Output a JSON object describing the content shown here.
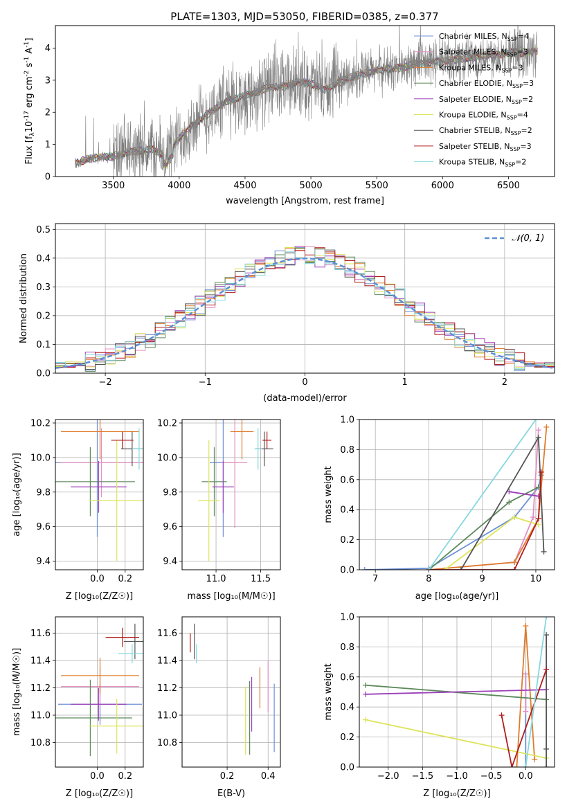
{
  "title": "PLATE=1303, MJD=53050, FIBERID=0385, z=0.377",
  "series_colors": [
    "#6b8fd6",
    "#e48fc4",
    "#e07b2a",
    "#5b8a5b",
    "#9b3fb8",
    "#dde45a",
    "#555555",
    "#b01c1c",
    "#86d8dd"
  ],
  "chart_data": [
    {
      "type": "line",
      "id": "spectrum",
      "xlabel": "wavelength [Angstrom, rest frame]",
      "ylabel": "Flux [f",
      "ylabel_sub": "λ",
      "ylabel_rest": "10",
      "ylabel_exp1": "-17",
      "ylabel_mid": " erg cm",
      "ylabel_exp2": "-2",
      "ylabel_mid2": " s",
      "ylabel_exp3": "-1",
      "ylabel_mid3": " A",
      "ylabel_exp4": "-1",
      "ylabel_end": "]",
      "xlim": [
        3060,
        6850
      ],
      "ylim": [
        0,
        4.7
      ],
      "xticks": [
        "3500",
        "4000",
        "4500",
        "5000",
        "5500",
        "6000",
        "6500"
      ],
      "yticks": [
        "0",
        "1",
        "2",
        "3",
        "4"
      ],
      "legend_position": "upper right",
      "data_continuum": {
        "x": [
          3210,
          3300,
          3400,
          3500,
          3600,
          3700,
          3800,
          3900,
          4000,
          4100,
          4200,
          4300,
          4400,
          4500,
          4600,
          4700,
          4800,
          4900,
          5000,
          5100,
          5200,
          5300,
          5400,
          5500,
          5600,
          5700,
          5800,
          5900,
          6000,
          6100,
          6200,
          6300,
          6400,
          6500,
          6600,
          6700
        ],
        "y": [
          0.4,
          0.55,
          0.6,
          0.62,
          0.75,
          0.8,
          0.85,
          0.6,
          1.2,
          1.6,
          1.9,
          2.2,
          2.4,
          2.5,
          2.65,
          2.8,
          2.8,
          2.95,
          2.9,
          2.7,
          2.9,
          3.1,
          3.2,
          3.3,
          3.35,
          3.4,
          3.5,
          3.55,
          3.6,
          3.65,
          3.7,
          3.75,
          3.8,
          3.85,
          3.85,
          3.9
        ]
      },
      "legend": [
        {
          "name": "Chabrier MILES, N",
          "sub": "SSP",
          "val": "=4"
        },
        {
          "name": "Salpeter MILES, N",
          "sub": "SSP",
          "val": "=3"
        },
        {
          "name": "Kroupa MILES, N",
          "sub": "SSP",
          "val": "=3"
        },
        {
          "name": "Chabrier ELODIE, N",
          "sub": "SSP",
          "val": "=3"
        },
        {
          "name": "Salpeter ELODIE, N",
          "sub": "SSP",
          "val": "=2"
        },
        {
          "name": "Kroupa ELODIE, N",
          "sub": "SSP",
          "val": "=4"
        },
        {
          "name": "Chabrier STELIB, N",
          "sub": "SSP",
          "val": "=2"
        },
        {
          "name": "Salpeter STELIB, N",
          "sub": "SSP",
          "val": "=3"
        },
        {
          "name": "Kroupa STELIB, N",
          "sub": "SSP",
          "val": "=2"
        }
      ]
    },
    {
      "type": "histogram",
      "id": "residuals",
      "xlabel": "(data-model)/error",
      "ylabel": "Normed distribution",
      "xlim": [
        -2.5,
        2.5
      ],
      "ylim": [
        0,
        0.52
      ],
      "xticks": [
        "−2",
        "−1",
        "0",
        "1",
        "2"
      ],
      "xtick_values": [
        -2,
        -1,
        0,
        1,
        2
      ],
      "yticks": [
        "0.0",
        "0.1",
        "0.2",
        "0.3",
        "0.4",
        "0.5"
      ],
      "legend_label": "𝒩(0, 1)",
      "grid": true,
      "bin_width": 0.1,
      "bins_start": -2.5
    },
    {
      "type": "errorbar",
      "id": "age_vs_Z",
      "xlabel": "Z [log₁₀(Z/Z☉)]",
      "ylabel": "age  [log₁₀(age/yr)]",
      "xlim": [
        -0.3,
        0.33
      ],
      "ylim": [
        9.35,
        10.22
      ],
      "xticks": [
        "0.0",
        "0.2"
      ],
      "xtick_values": [
        0.0,
        0.2
      ],
      "yticks": [
        "9.4",
        "9.6",
        "9.8",
        "10.0",
        "10.2"
      ],
      "ytick_values": [
        9.4,
        9.6,
        9.8,
        10.0,
        10.2
      ],
      "points": [
        {
          "x": 0.0,
          "xerr": 0.35,
          "y": 9.97,
          "yerr": 0.43
        },
        {
          "x": 0.03,
          "xerr": 0.3,
          "y": 9.97,
          "yerr": 0.2
        },
        {
          "x": 0.02,
          "xerr": 0.28,
          "y": 10.15,
          "yerr": 0.16
        },
        {
          "x": -0.05,
          "xerr": 0.32,
          "y": 9.86,
          "yerr": 0.2
        },
        {
          "x": 0.01,
          "xerr": 0.2,
          "y": 9.83,
          "yerr": 0.15
        },
        {
          "x": 0.14,
          "xerr": 0.2,
          "y": 9.75,
          "yerr": 0.35
        },
        {
          "x": 0.25,
          "xerr": 0.08,
          "y": 10.05,
          "yerr": 0.1
        },
        {
          "x": 0.18,
          "xerr": 0.08,
          "y": 10.1,
          "yerr": 0.05
        },
        {
          "x": 0.3,
          "xerr": 0.05,
          "y": 10.05,
          "yerr": 0.12
        }
      ]
    },
    {
      "type": "errorbar",
      "id": "age_vs_mass",
      "xlabel": "mass [log₁₀(M/M☉)]",
      "ylabel": "",
      "xlim": [
        10.62,
        11.72
      ],
      "ylim": [
        9.35,
        10.22
      ],
      "xticks": [
        "11.0",
        "11.5"
      ],
      "xtick_values": [
        11.0,
        11.5
      ],
      "yticks": [
        "9.4",
        "9.6",
        "9.8",
        "10.0",
        "10.2"
      ],
      "ytick_values": [
        9.4,
        9.6,
        9.8,
        10.0,
        10.2
      ],
      "points": [
        {
          "x": 11.08,
          "xerr": 0.15,
          "y": 9.97,
          "yerr": 0.43
        },
        {
          "x": 11.21,
          "xerr": 0.14,
          "y": 9.97,
          "yerr": 0.38
        },
        {
          "x": 11.29,
          "xerr": 0.13,
          "y": 10.15,
          "yerr": 0.16
        },
        {
          "x": 10.98,
          "xerr": 0.14,
          "y": 9.86,
          "yerr": 0.2
        },
        {
          "x": 11.08,
          "xerr": 0.12,
          "y": 9.83,
          "yerr": 0.15
        },
        {
          "x": 10.92,
          "xerr": 0.12,
          "y": 9.75,
          "yerr": 0.35
        },
        {
          "x": 11.54,
          "xerr": 0.1,
          "y": 10.05,
          "yerr": 0.1
        },
        {
          "x": 11.57,
          "xerr": 0.05,
          "y": 10.1,
          "yerr": 0.05
        },
        {
          "x": 11.47,
          "xerr": 0.04,
          "y": 10.05,
          "yerr": 0.12
        }
      ]
    },
    {
      "type": "line",
      "id": "massweight_vs_age",
      "xlabel": "age  [log₁₀(age/yr)]",
      "ylabel": "mass weight",
      "xlim": [
        6.7,
        10.35
      ],
      "ylim": [
        0,
        1
      ],
      "xticks": [
        "7",
        "8",
        "9",
        "10"
      ],
      "xtick_values": [
        7,
        8,
        9,
        10
      ],
      "yticks": [
        "0.0",
        "0.2",
        "0.4",
        "0.6",
        "0.8",
        "1.0"
      ],
      "ytick_values": [
        0,
        0.2,
        0.4,
        0.6,
        0.8,
        1.0
      ],
      "series": [
        {
          "x": [
            6.8,
            8.0,
            9.6,
            10.05,
            10.1
          ],
          "y": [
            0.0,
            0.01,
            0.35,
            0.55,
            0.63
          ]
        },
        {
          "x": [
            8.0,
            9.6,
            9.95,
            10.05
          ],
          "y": [
            0.0,
            0.05,
            0.35,
            0.93
          ]
        },
        {
          "x": [
            8.0,
            9.6,
            10.05,
            10.2
          ],
          "y": [
            0.0,
            0.05,
            0.34,
            0.95
          ]
        },
        {
          "x": [
            8.0,
            9.5,
            10.05
          ],
          "y": [
            0.0,
            0.45,
            0.55
          ]
        },
        {
          "x": [
            9.5,
            10.05
          ],
          "y": [
            0.52,
            0.49
          ]
        },
        {
          "x": [
            8.3,
            9.6,
            10.05
          ],
          "y": [
            0.0,
            0.35,
            0.3
          ]
        },
        {
          "x": [
            8.6,
            10.05,
            10.15
          ],
          "y": [
            0.0,
            0.88,
            0.12
          ]
        },
        {
          "x": [
            8.0,
            9.6,
            10.05,
            10.1
          ],
          "y": [
            0.0,
            0.0,
            0.34,
            0.65
          ]
        },
        {
          "x": [
            8.0,
            10.0
          ],
          "y": [
            0.0,
            1.0
          ]
        }
      ]
    },
    {
      "type": "errorbar",
      "id": "mass_vs_Z",
      "xlabel": "Z [log₁₀(Z/Z☉)]",
      "ylabel": "mass [log₁₀(M/M☉)]",
      "xlim": [
        -0.3,
        0.33
      ],
      "ylim": [
        10.62,
        11.72
      ],
      "xticks": [
        "0.0",
        "0.2"
      ],
      "xtick_values": [
        0.0,
        0.2
      ],
      "yticks": [
        "10.8",
        "11.0",
        "11.2",
        "11.4",
        "11.6"
      ],
      "ytick_values": [
        10.8,
        11.0,
        11.2,
        11.4,
        11.6
      ],
      "points": [
        {
          "x": 0.02,
          "xerr": 0.3,
          "y": 11.08,
          "yerr": 0.15
        },
        {
          "x": 0.02,
          "xerr": 0.28,
          "y": 11.21,
          "yerr": 0.14
        },
        {
          "x": 0.02,
          "xerr": 0.28,
          "y": 11.29,
          "yerr": 0.13
        },
        {
          "x": -0.05,
          "xerr": 0.3,
          "y": 10.98,
          "yerr": 0.28
        },
        {
          "x": 0.01,
          "xerr": 0.2,
          "y": 11.08,
          "yerr": 0.12
        },
        {
          "x": 0.14,
          "xerr": 0.2,
          "y": 10.92,
          "yerr": 0.2
        },
        {
          "x": 0.27,
          "xerr": 0.08,
          "y": 11.54,
          "yerr": 0.13
        },
        {
          "x": 0.18,
          "xerr": 0.12,
          "y": 11.57,
          "yerr": 0.07
        },
        {
          "x": 0.25,
          "xerr": 0.1,
          "y": 11.45,
          "yerr": 0.07
        }
      ]
    },
    {
      "type": "errorbar",
      "id": "mass_vs_ebv",
      "xlabel": "E(B-V)",
      "ylabel": "",
      "xlim": [
        -0.02,
        0.46
      ],
      "ylim": [
        10.62,
        11.72
      ],
      "xticks": [
        "0.2",
        "0.4"
      ],
      "xtick_values": [
        0.2,
        0.4
      ],
      "yticks": [
        "10.8",
        "11.0",
        "11.2",
        "11.4",
        "11.6"
      ],
      "ytick_values": [
        10.8,
        11.0,
        11.2,
        11.4,
        11.6
      ],
      "points": [
        {
          "x": 0.43,
          "y": 10.98,
          "yerr": 0.25
        },
        {
          "x": 0.4,
          "y": 11.21,
          "yerr": 0.19
        },
        {
          "x": 0.36,
          "y": 11.2,
          "yerr": 0.15
        },
        {
          "x": 0.31,
          "y": 10.98,
          "yerr": 0.27
        },
        {
          "x": 0.32,
          "y": 11.08,
          "yerr": 0.2
        },
        {
          "x": 0.29,
          "y": 10.96,
          "yerr": 0.25
        },
        {
          "x": 0.04,
          "y": 11.54,
          "yerr": 0.13
        },
        {
          "x": 0.02,
          "y": 11.53,
          "yerr": 0.07
        },
        {
          "x": 0.05,
          "y": 11.45,
          "yerr": 0.07
        }
      ]
    },
    {
      "type": "line",
      "id": "massweight_vs_Z",
      "xlabel": "Z [log₁₀(Z/Z☉)]",
      "ylabel": "mass weight",
      "xlim": [
        -2.42,
        0.42
      ],
      "ylim": [
        0,
        1
      ],
      "xticks": [
        "−2.0",
        "−1.5",
        "−1.0",
        "−0.5",
        "0.0"
      ],
      "xtick_values": [
        -2.0,
        -1.5,
        -1.0,
        -0.5,
        0.0
      ],
      "yticks": [
        "0.0",
        "0.2",
        "0.4",
        "0.6",
        "0.8",
        "1.0"
      ],
      "ytick_values": [
        0,
        0.2,
        0.4,
        0.6,
        0.8,
        1.0
      ],
      "series": [
        {
          "x": [
            0.0,
            0.0
          ],
          "y": [
            0.0,
            0.62
          ]
        },
        {
          "x": [
            0.0,
            0.0
          ],
          "y": [
            0.37,
            0.62
          ]
        },
        {
          "x": [
            -0.13,
            0.0,
            0.13
          ],
          "y": [
            0.0,
            0.94,
            0.05
          ]
        },
        {
          "x": [
            -2.33,
            0.3
          ],
          "y": [
            0.545,
            0.45
          ]
        },
        {
          "x": [
            -2.33,
            0.3
          ],
          "y": [
            0.485,
            0.515
          ]
        },
        {
          "x": [
            -2.33,
            0.3
          ],
          "y": [
            0.315,
            0.06
          ]
        },
        {
          "x": [
            0.3,
            0.3,
            0.3
          ],
          "y": [
            0.0,
            0.88,
            0.12
          ]
        },
        {
          "x": [
            -0.35,
            -0.2,
            0.3
          ],
          "y": [
            0.345,
            0.0,
            0.65
          ]
        },
        {
          "x": [
            0.0,
            0.3
          ],
          "y": [
            0.0,
            1.0
          ]
        }
      ]
    }
  ]
}
